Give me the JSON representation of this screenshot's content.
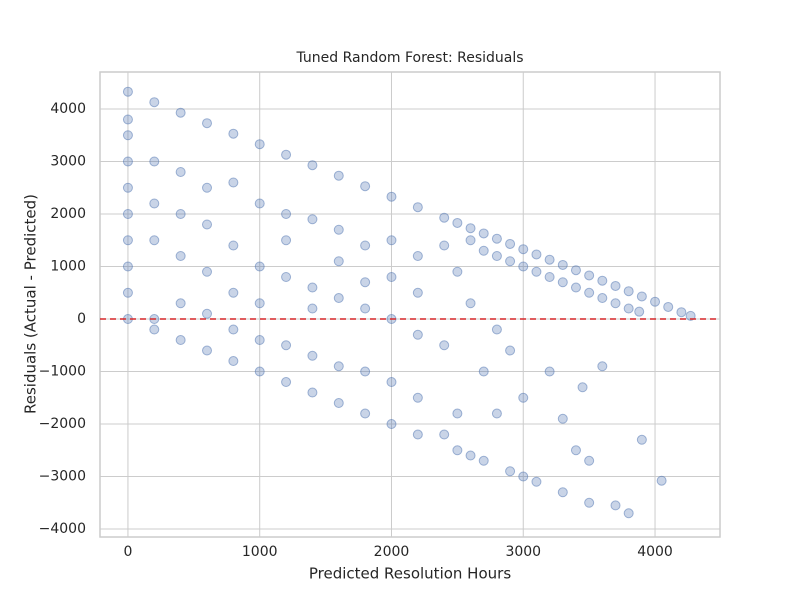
{
  "chart_data": {
    "type": "scatter",
    "title": "Tuned Random Forest: Residuals",
    "x_label": "Predicted Resolution Hours",
    "y_label": "Residuals (Actual - Predicted)",
    "color": "#4c72b0",
    "grid": true,
    "hline": 0,
    "hline_color": "#d62728",
    "xlim": [
      -212,
      4493
    ],
    "ylim": [
      -4152,
      4705
    ],
    "xticks": [
      0,
      1000,
      2000,
      3000,
      4000
    ],
    "yticks": [
      {
        "value": -4000,
        "label": "−4000"
      },
      {
        "value": -3000,
        "label": "−3000"
      },
      {
        "value": -2000,
        "label": "−2000"
      },
      {
        "value": -1000,
        "label": "−1000"
      },
      0,
      1000,
      2000,
      3000,
      4000
    ],
    "x": [
      0,
      0,
      0,
      0,
      0,
      0,
      0,
      0,
      0,
      0,
      200,
      200,
      200,
      200,
      200,
      200,
      400,
      400,
      400,
      400,
      400,
      400,
      600,
      600,
      600,
      600,
      600,
      600,
      800,
      800,
      800,
      800,
      800,
      800,
      1000,
      1000,
      1000,
      1000,
      1000,
      1000,
      1200,
      1200,
      1200,
      1200,
      1200,
      1200,
      1400,
      1400,
      1400,
      1400,
      1400,
      1400,
      1600,
      1600,
      1600,
      1600,
      1600,
      1600,
      1800,
      1800,
      1800,
      1800,
      1800,
      1800,
      2000,
      2000,
      2000,
      2000,
      2000,
      2000,
      2200,
      2200,
      2200,
      2200,
      2200,
      2200,
      2400,
      2400,
      2400,
      2400,
      2500,
      2500,
      2500,
      2500,
      2600,
      2600,
      2600,
      2600,
      2700,
      2700,
      2700,
      2700,
      2800,
      2800,
      2800,
      2800,
      2900,
      2900,
      2900,
      2900,
      3000,
      3000,
      3000,
      3000,
      3100,
      3100,
      3100,
      3200,
      3200,
      3200,
      3300,
      3300,
      3300,
      3400,
      3400,
      3400,
      3450,
      3500,
      3500,
      3500,
      3600,
      3600,
      3600,
      3700,
      3700,
      3700,
      3800,
      3800,
      3800,
      3900,
      3900,
      4000,
      4050,
      4100,
      4200,
      4270,
      3880,
      3300,
      3500
    ],
    "values": [
      4330,
      3000,
      2000,
      1000,
      0,
      500,
      3800,
      1500,
      2500,
      3500,
      4130,
      3000,
      1500,
      0,
      -200,
      2200,
      3930,
      2800,
      1200,
      -400,
      300,
      2000,
      3730,
      2500,
      900,
      -600,
      100,
      1800,
      3530,
      2600,
      1400,
      -800,
      -200,
      500,
      3330,
      2200,
      1000,
      -1000,
      -400,
      300,
      3130,
      2000,
      800,
      -1200,
      -500,
      1500,
      2930,
      1900,
      600,
      -1400,
      -700,
      200,
      2730,
      1700,
      400,
      -1600,
      -900,
      1100,
      2530,
      1400,
      200,
      -1800,
      -1000,
      700,
      2330,
      1500,
      0,
      -2000,
      -1200,
      800,
      2130,
      1200,
      -300,
      -2200,
      -1500,
      500,
      1930,
      1400,
      -500,
      -2200,
      1830,
      900,
      -1800,
      -2500,
      1730,
      1500,
      300,
      -2600,
      1630,
      1300,
      -1000,
      -2700,
      1530,
      1200,
      -200,
      -1800,
      1430,
      1100,
      -600,
      -2900,
      1330,
      1000,
      -1500,
      -3000,
      1230,
      900,
      -3100,
      1130,
      800,
      -1000,
      1030,
      700,
      -3300,
      930,
      600,
      -2500,
      -1300,
      830,
      500,
      -3500,
      730,
      400,
      -900,
      630,
      300,
      -3550,
      530,
      200,
      -3700,
      430,
      -2300,
      330,
      -3080,
      230,
      130,
      60,
      140,
      -1900,
      -2700
    ]
  }
}
